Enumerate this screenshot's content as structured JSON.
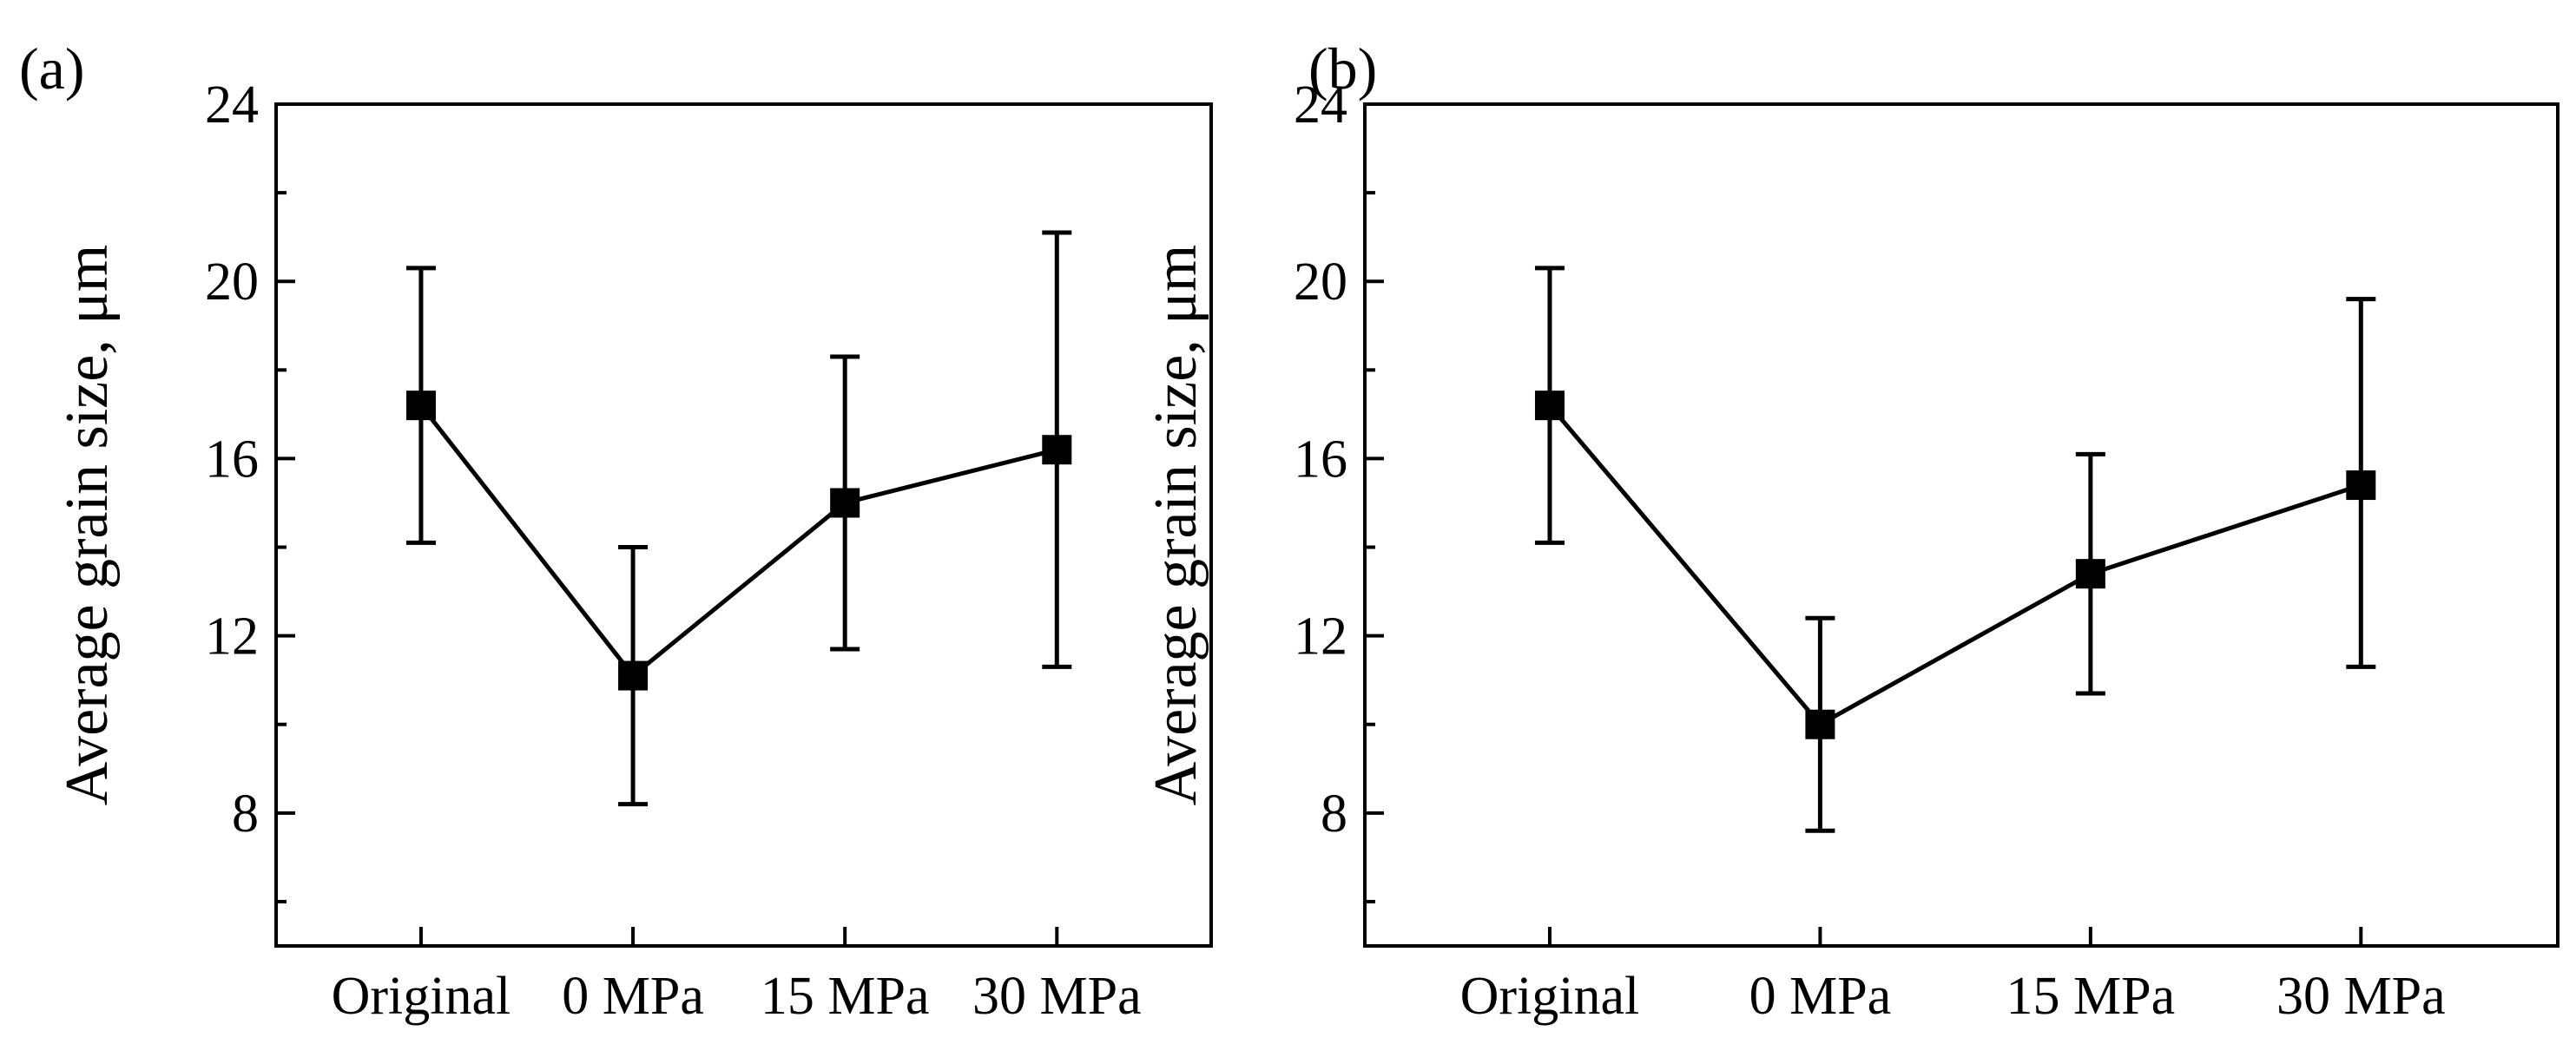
{
  "chart_data": [
    {
      "panel_label": "(a)",
      "type": "line",
      "categories": [
        "Original",
        "0 MPa",
        "15 MPa",
        "30 MPa"
      ],
      "series": [
        {
          "name": "Average grain size",
          "values": [
            17.2,
            11.1,
            15.0,
            16.2
          ],
          "error_low": [
            14.1,
            8.2,
            11.7,
            11.3
          ],
          "error_high": [
            20.3,
            14.0,
            18.3,
            21.1
          ]
        }
      ],
      "ylabel": "Average grain size, μm",
      "xlabel": "",
      "ylim": [
        5,
        24
      ],
      "yticks": [
        8,
        12,
        16,
        20,
        24
      ],
      "ytick_labels": [
        "8",
        "12",
        "16",
        "20",
        "24"
      ],
      "yminor_ticks": [
        6,
        10,
        14,
        18,
        22
      ],
      "grid": false
    },
    {
      "panel_label": "(b)",
      "type": "line",
      "categories": [
        "Original",
        "0 MPa",
        "15 MPa",
        "30 MPa"
      ],
      "series": [
        {
          "name": "Average grain size",
          "values": [
            17.2,
            10.0,
            13.4,
            15.4
          ],
          "error_low": [
            14.1,
            7.6,
            10.7,
            11.3
          ],
          "error_high": [
            20.3,
            12.4,
            16.1,
            19.6
          ]
        }
      ],
      "ylabel": "Average grain size, μm",
      "xlabel": "",
      "ylim": [
        5,
        24
      ],
      "yticks": [
        8,
        12,
        16,
        20,
        24
      ],
      "ytick_labels": [
        "8",
        "12",
        "16",
        "20",
        "24"
      ],
      "yminor_ticks": [
        6,
        10,
        14,
        18,
        22
      ],
      "grid": false
    }
  ]
}
